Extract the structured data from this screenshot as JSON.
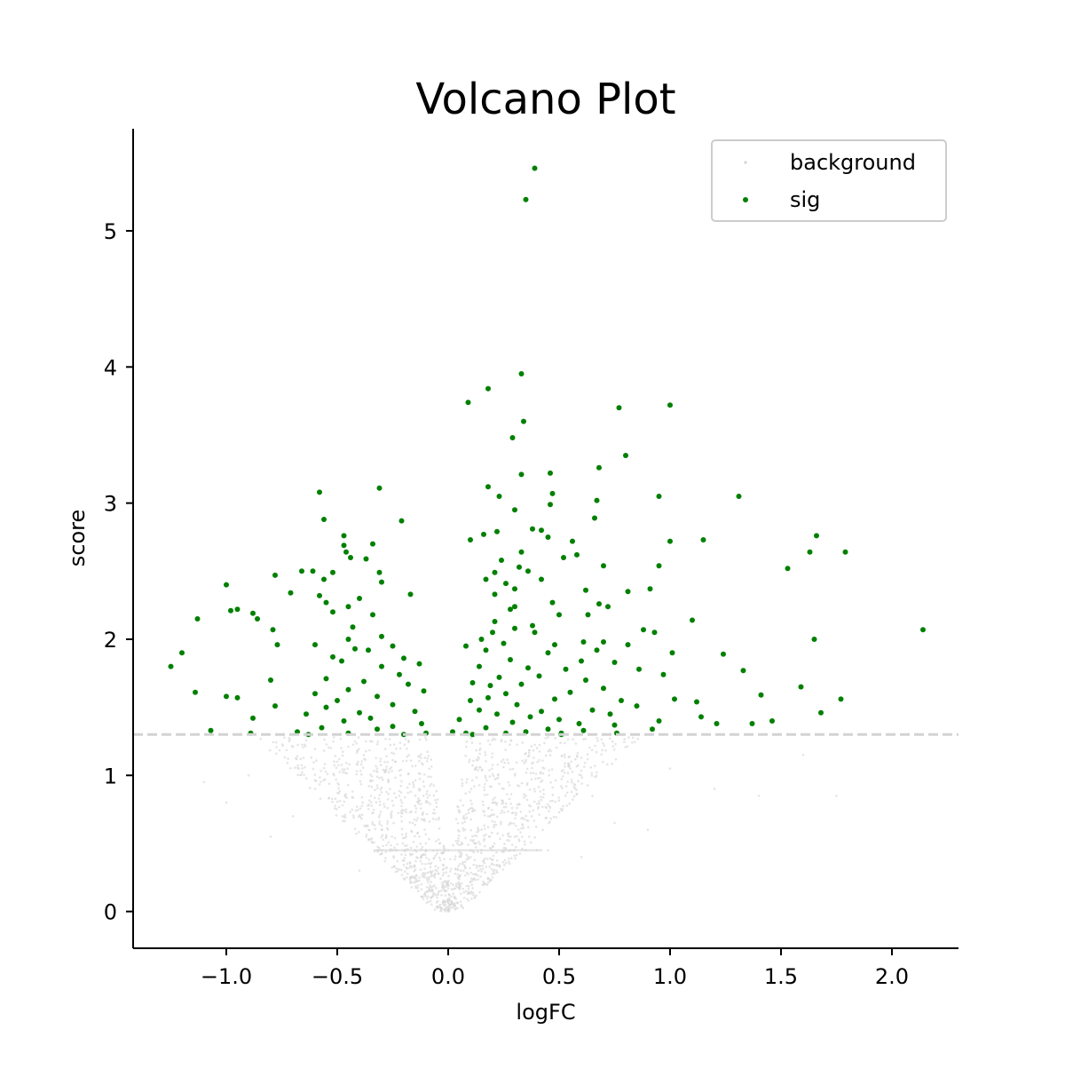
{
  "chart_data": {
    "type": "scatter",
    "title": "Volcano Plot",
    "xlabel": "logFC",
    "ylabel": "score",
    "xlim": [
      -1.42,
      2.3
    ],
    "ylim": [
      -0.27,
      5.75
    ],
    "x_ticks": [
      -1.0,
      -0.5,
      0.0,
      0.5,
      1.0,
      1.5,
      2.0
    ],
    "x_tick_labels": [
      "−1.0",
      "−0.5",
      "0.0",
      "0.5",
      "1.0",
      "1.5",
      "2.0"
    ],
    "y_ticks": [
      0,
      1,
      2,
      3,
      4,
      5
    ],
    "y_tick_labels": [
      "0",
      "1",
      "2",
      "3",
      "4",
      "5"
    ],
    "grid": false,
    "legend_position": "top-right",
    "threshold": {
      "y": 1.3,
      "style": "dashed",
      "color": "#d3d3d3"
    },
    "colors": {
      "background": "#d3d3d3",
      "sig": "#008000"
    },
    "series": [
      {
        "name": "background",
        "description_shape": "dense cloud of grey points below score 1.3, V-shaped around logFC 0",
        "points": [
          [
            0.0,
            0.0
          ],
          [
            0.01,
            0.05
          ],
          [
            -0.02,
            0.08
          ],
          [
            0.03,
            0.1
          ],
          [
            -0.04,
            0.15
          ],
          [
            0.05,
            0.2
          ],
          [
            -0.06,
            0.25
          ],
          [
            0.07,
            0.3
          ],
          [
            -0.08,
            0.35
          ],
          [
            0.09,
            0.4
          ],
          [
            -0.1,
            0.45
          ],
          [
            0.12,
            0.5
          ],
          [
            -0.13,
            0.55
          ],
          [
            0.15,
            0.6
          ],
          [
            -0.16,
            0.65
          ],
          [
            0.18,
            0.7
          ],
          [
            -0.19,
            0.75
          ],
          [
            0.2,
            0.8
          ],
          [
            -0.22,
            0.85
          ],
          [
            0.25,
            0.9
          ],
          [
            -0.27,
            0.95
          ],
          [
            0.3,
            1.0
          ],
          [
            -0.32,
            1.05
          ],
          [
            0.35,
            1.1
          ],
          [
            -0.38,
            1.15
          ],
          [
            0.4,
            1.2
          ],
          [
            -0.42,
            1.25
          ],
          [
            0.45,
            1.28
          ],
          [
            -0.5,
            1.1
          ],
          [
            0.55,
            1.05
          ],
          [
            -0.6,
            0.9
          ],
          [
            0.65,
            0.85
          ],
          [
            -0.7,
            0.7
          ],
          [
            0.75,
            0.65
          ],
          [
            -0.3,
            0.6
          ],
          [
            0.3,
            0.55
          ],
          [
            -0.2,
            0.45
          ],
          [
            -0.15,
            0.45
          ],
          [
            -0.1,
            0.45
          ],
          [
            -0.05,
            0.45
          ],
          [
            0.0,
            0.45
          ],
          [
            0.05,
            0.45
          ],
          [
            0.1,
            0.45
          ],
          [
            0.15,
            0.45
          ],
          [
            0.2,
            0.45
          ],
          [
            0.25,
            0.45
          ],
          [
            0.3,
            0.45
          ],
          [
            0.35,
            0.45
          ],
          [
            0.4,
            0.45
          ],
          [
            0.45,
            0.45
          ],
          [
            -0.25,
            0.45
          ],
          [
            -0.3,
            0.45
          ],
          [
            -0.9,
            1.0
          ],
          [
            1.0,
            1.05
          ],
          [
            1.2,
            0.9
          ],
          [
            -1.1,
            0.95
          ],
          [
            1.4,
            0.85
          ],
          [
            1.6,
            1.15
          ],
          [
            1.75,
            0.85
          ],
          [
            -1.0,
            0.8
          ],
          [
            0.9,
            0.6
          ],
          [
            -0.8,
            0.55
          ],
          [
            0.6,
            0.4
          ],
          [
            -0.4,
            0.3
          ],
          [
            0.2,
            0.25
          ],
          [
            -0.12,
            0.2
          ],
          [
            0.08,
            0.15
          ],
          [
            -0.03,
            0.12
          ],
          [
            0.02,
            0.06
          ],
          [
            -0.01,
            0.03
          ]
        ]
      },
      {
        "name": "sig",
        "points": [
          [
            0.39,
            5.46
          ],
          [
            0.35,
            5.23
          ],
          [
            0.33,
            3.95
          ],
          [
            0.18,
            3.84
          ],
          [
            0.09,
            3.74
          ],
          [
            1.0,
            3.72
          ],
          [
            0.77,
            3.7
          ],
          [
            0.34,
            3.6
          ],
          [
            0.29,
            3.48
          ],
          [
            0.8,
            3.35
          ],
          [
            0.68,
            3.26
          ],
          [
            0.33,
            3.21
          ],
          [
            0.46,
            3.22
          ],
          [
            -0.31,
            3.11
          ],
          [
            0.18,
            3.12
          ],
          [
            0.23,
            3.05
          ],
          [
            0.47,
            3.07
          ],
          [
            0.95,
            3.05
          ],
          [
            1.31,
            3.05
          ],
          [
            -0.58,
            3.08
          ],
          [
            0.67,
            3.02
          ],
          [
            0.46,
            2.99
          ],
          [
            0.3,
            2.95
          ],
          [
            -0.56,
            2.88
          ],
          [
            -0.21,
            2.87
          ],
          [
            0.66,
            2.89
          ],
          [
            0.38,
            2.81
          ],
          [
            0.22,
            2.79
          ],
          [
            0.16,
            2.77
          ],
          [
            0.42,
            2.8
          ],
          [
            0.45,
            2.75
          ],
          [
            1.66,
            2.76
          ],
          [
            0.1,
            2.73
          ],
          [
            0.56,
            2.72
          ],
          [
            1.0,
            2.72
          ],
          [
            1.15,
            2.73
          ],
          [
            -0.47,
            2.76
          ],
          [
            -0.47,
            2.69
          ],
          [
            -0.34,
            2.7
          ],
          [
            -0.46,
            2.64
          ],
          [
            0.33,
            2.64
          ],
          [
            1.79,
            2.64
          ],
          [
            1.63,
            2.64
          ],
          [
            -0.44,
            2.6
          ],
          [
            -0.37,
            2.59
          ],
          [
            0.58,
            2.62
          ],
          [
            0.52,
            2.6
          ],
          [
            0.24,
            2.58
          ],
          [
            0.32,
            2.53
          ],
          [
            1.53,
            2.52
          ],
          [
            0.95,
            2.54
          ],
          [
            0.7,
            2.54
          ],
          [
            -0.61,
            2.5
          ],
          [
            -0.66,
            2.5
          ],
          [
            -0.52,
            2.49
          ],
          [
            -0.31,
            2.49
          ],
          [
            0.21,
            2.49
          ],
          [
            0.36,
            2.5
          ],
          [
            0.42,
            2.44
          ],
          [
            -0.56,
            2.44
          ],
          [
            0.17,
            2.44
          ],
          [
            -0.78,
            2.47
          ],
          [
            0.26,
            2.41
          ],
          [
            -0.3,
            2.42
          ],
          [
            -1.0,
            2.4
          ],
          [
            0.3,
            2.37
          ],
          [
            0.91,
            2.37
          ],
          [
            0.81,
            2.35
          ],
          [
            -0.71,
            2.34
          ],
          [
            0.62,
            2.36
          ],
          [
            0.21,
            2.33
          ],
          [
            -0.58,
            2.32
          ],
          [
            -0.17,
            2.33
          ],
          [
            -0.4,
            2.3
          ],
          [
            -0.55,
            2.27
          ],
          [
            0.47,
            2.27
          ],
          [
            0.3,
            2.24
          ],
          [
            0.28,
            2.22
          ],
          [
            -0.98,
            2.21
          ],
          [
            -0.95,
            2.22
          ],
          [
            0.68,
            2.26
          ],
          [
            0.72,
            2.24
          ],
          [
            -0.45,
            2.24
          ],
          [
            -0.52,
            2.2
          ],
          [
            -0.88,
            2.19
          ],
          [
            -0.34,
            2.18
          ],
          [
            0.5,
            2.18
          ],
          [
            0.63,
            2.18
          ],
          [
            -1.13,
            2.15
          ],
          [
            -0.86,
            2.15
          ],
          [
            1.1,
            2.14
          ],
          [
            0.21,
            2.13
          ],
          [
            0.38,
            2.1
          ],
          [
            -0.43,
            2.09
          ],
          [
            0.3,
            2.08
          ],
          [
            2.14,
            2.07
          ],
          [
            0.88,
            2.07
          ],
          [
            0.93,
            2.05
          ],
          [
            -0.79,
            2.07
          ],
          [
            0.2,
            2.05
          ],
          [
            0.39,
            2.05
          ],
          [
            0.15,
            2.0
          ],
          [
            1.65,
            2.0
          ],
          [
            -0.3,
            2.02
          ],
          [
            -0.45,
            2.0
          ],
          [
            0.61,
            1.98
          ],
          [
            0.7,
            1.98
          ],
          [
            0.81,
            1.96
          ],
          [
            0.48,
            1.96
          ],
          [
            -0.6,
            1.96
          ],
          [
            -0.77,
            1.96
          ],
          [
            0.25,
            1.97
          ],
          [
            -0.25,
            1.95
          ],
          [
            0.08,
            1.95
          ],
          [
            -0.42,
            1.93
          ],
          [
            0.17,
            1.92
          ],
          [
            -0.36,
            1.92
          ],
          [
            0.67,
            1.92
          ],
          [
            1.24,
            1.89
          ],
          [
            1.01,
            1.9
          ],
          [
            -1.2,
            1.9
          ],
          [
            0.45,
            1.9
          ],
          [
            -0.52,
            1.87
          ],
          [
            -0.2,
            1.86
          ],
          [
            0.28,
            1.85
          ],
          [
            0.6,
            1.84
          ],
          [
            0.75,
            1.83
          ],
          [
            -0.48,
            1.84
          ],
          [
            -0.13,
            1.82
          ],
          [
            -1.25,
            1.8
          ],
          [
            0.36,
            1.79
          ],
          [
            0.14,
            1.8
          ],
          [
            -0.3,
            1.8
          ],
          [
            0.53,
            1.78
          ],
          [
            1.33,
            1.77
          ],
          [
            0.86,
            1.78
          ],
          [
            0.97,
            1.74
          ],
          [
            -0.22,
            1.74
          ],
          [
            0.41,
            1.73
          ],
          [
            0.23,
            1.72
          ],
          [
            -0.55,
            1.71
          ],
          [
            0.62,
            1.7
          ],
          [
            -0.8,
            1.7
          ],
          [
            -0.38,
            1.69
          ],
          [
            0.11,
            1.68
          ],
          [
            0.33,
            1.67
          ],
          [
            -0.18,
            1.67
          ],
          [
            0.19,
            1.66
          ],
          [
            1.59,
            1.65
          ],
          [
            0.7,
            1.64
          ],
          [
            -0.45,
            1.63
          ],
          [
            -0.11,
            1.62
          ],
          [
            -1.14,
            1.61
          ],
          [
            0.55,
            1.61
          ],
          [
            -0.6,
            1.6
          ],
          [
            0.26,
            1.6
          ],
          [
            1.41,
            1.59
          ],
          [
            -0.32,
            1.58
          ],
          [
            -1.0,
            1.58
          ],
          [
            -0.95,
            1.57
          ],
          [
            1.77,
            1.56
          ],
          [
            1.02,
            1.56
          ],
          [
            0.18,
            1.57
          ],
          [
            0.48,
            1.56
          ],
          [
            -0.5,
            1.55
          ],
          [
            0.1,
            1.55
          ],
          [
            0.78,
            1.55
          ],
          [
            1.12,
            1.54
          ],
          [
            -0.25,
            1.52
          ],
          [
            0.31,
            1.52
          ],
          [
            0.85,
            1.51
          ],
          [
            -0.78,
            1.51
          ],
          [
            -0.55,
            1.5
          ],
          [
            0.65,
            1.48
          ],
          [
            0.14,
            1.48
          ],
          [
            -0.15,
            1.47
          ],
          [
            0.42,
            1.47
          ],
          [
            1.68,
            1.46
          ],
          [
            -0.4,
            1.46
          ],
          [
            0.73,
            1.45
          ],
          [
            -0.64,
            1.45
          ],
          [
            0.22,
            1.45
          ],
          [
            1.14,
            1.43
          ],
          [
            0.37,
            1.43
          ],
          [
            -0.35,
            1.42
          ],
          [
            -0.88,
            1.42
          ],
          [
            0.5,
            1.41
          ],
          [
            0.05,
            1.41
          ],
          [
            1.46,
            1.4
          ],
          [
            -0.47,
            1.4
          ],
          [
            0.95,
            1.4
          ],
          [
            0.29,
            1.39
          ],
          [
            1.37,
            1.38
          ],
          [
            0.59,
            1.38
          ],
          [
            -0.12,
            1.38
          ],
          [
            1.21,
            1.38
          ],
          [
            0.75,
            1.37
          ],
          [
            -0.25,
            1.36
          ],
          [
            0.17,
            1.35
          ],
          [
            -0.57,
            1.35
          ],
          [
            0.92,
            1.34
          ],
          [
            0.45,
            1.34
          ],
          [
            -0.32,
            1.34
          ],
          [
            0.02,
            1.32
          ],
          [
            -1.07,
            1.33
          ],
          [
            0.61,
            1.33
          ],
          [
            -0.68,
            1.32
          ],
          [
            0.35,
            1.32
          ],
          [
            -0.1,
            1.31
          ],
          [
            0.26,
            1.31
          ],
          [
            0.51,
            1.31
          ],
          [
            -0.45,
            1.31
          ],
          [
            -0.89,
            1.31
          ],
          [
            0.08,
            1.31
          ],
          [
            0.76,
            1.31
          ],
          [
            0.11,
            1.3
          ],
          [
            -0.63,
            1.3
          ],
          [
            0.51,
            1.3
          ],
          [
            -0.2,
            1.3
          ]
        ]
      }
    ]
  }
}
